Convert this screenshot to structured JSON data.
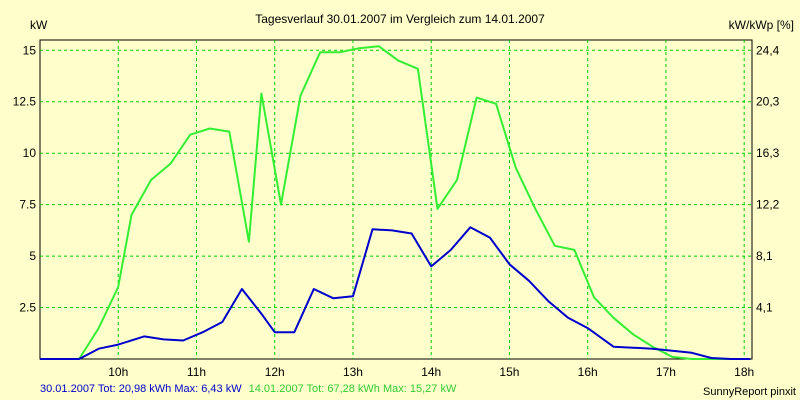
{
  "chart_data": {
    "type": "line",
    "title": "Tagesverlauf 30.01.2007 im Vergleich zum 14.01.2007",
    "ylabel": "kW",
    "ylabel_right": "kW/kWp [%]",
    "xlabel": "",
    "xlim": [
      9.0,
      18.1
    ],
    "ylim": [
      0,
      15.5
    ],
    "y_ticks": [
      "2.5",
      "5",
      "7.5",
      "10",
      "12.5",
      "15"
    ],
    "y_tick_values": [
      2.5,
      5,
      7.5,
      10,
      12.5,
      15
    ],
    "y_right_ticks": [
      "4,1",
      "8,1",
      "12,2",
      "16,3",
      "20,3",
      "24,4"
    ],
    "x_ticks": [
      "10h",
      "11h",
      "12h",
      "13h",
      "14h",
      "15h",
      "16h",
      "17h",
      "18h"
    ],
    "x_tick_values": [
      10,
      11,
      12,
      13,
      14,
      15,
      16,
      17,
      18
    ],
    "grid": true,
    "series": [
      {
        "name": "30.01.2007",
        "color": "#0000cc",
        "x": [
          9.0,
          9.5,
          9.75,
          10.0,
          10.33,
          10.58,
          10.83,
          11.08,
          11.33,
          11.58,
          11.83,
          12.0,
          12.25,
          12.5,
          12.75,
          13.0,
          13.25,
          13.5,
          13.75,
          14.0,
          14.25,
          14.5,
          14.75,
          15.0,
          15.25,
          15.5,
          15.75,
          16.0,
          16.33,
          16.58,
          16.83,
          17.08,
          17.33,
          17.58,
          17.83,
          18.08
        ],
        "y": [
          0.0,
          0.0,
          0.5,
          0.7,
          1.1,
          0.95,
          0.9,
          1.3,
          1.8,
          3.4,
          2.2,
          1.3,
          1.3,
          3.4,
          2.95,
          3.05,
          6.3,
          6.25,
          6.1,
          4.5,
          5.3,
          6.4,
          5.9,
          4.6,
          3.8,
          2.8,
          2.0,
          1.5,
          0.6,
          0.55,
          0.5,
          0.4,
          0.3,
          0.05,
          0.0,
          0.0
        ]
      },
      {
        "name": "14.01.2007",
        "color": "#33ee33",
        "x": [
          9.0,
          9.5,
          9.75,
          10.0,
          10.17,
          10.42,
          10.67,
          10.92,
          11.17,
          11.42,
          11.67,
          11.83,
          12.08,
          12.33,
          12.58,
          12.83,
          13.08,
          13.33,
          13.58,
          13.83,
          14.08,
          14.33,
          14.58,
          14.83,
          15.08,
          15.33,
          15.58,
          15.83,
          16.08,
          16.33,
          16.58,
          16.83,
          17.08,
          17.33,
          17.58,
          17.83,
          18.08
        ],
        "y": [
          0.0,
          0.0,
          1.5,
          3.5,
          7.0,
          8.7,
          9.5,
          10.9,
          11.2,
          11.05,
          5.7,
          12.9,
          7.5,
          12.8,
          14.9,
          14.9,
          15.1,
          15.2,
          14.5,
          14.1,
          7.3,
          8.7,
          12.7,
          12.4,
          9.3,
          7.3,
          5.5,
          5.3,
          3.0,
          2.0,
          1.2,
          0.6,
          0.1,
          0.0,
          0.0,
          0.0,
          0.0
        ]
      }
    ]
  },
  "footer": {
    "series1_text": "30.01.2007 Tot: 20,98 kWh Max: 6,43 kW",
    "series2_text": "14.01.2007 Tot: 67,28 kWh Max: 15,27 kW",
    "credit": "SunnyReport pinxit"
  }
}
